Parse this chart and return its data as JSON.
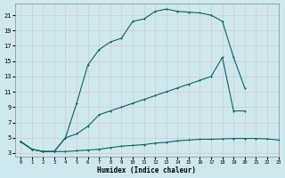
{
  "xlabel": "Humidex (Indice chaleur)",
  "bg_color": "#cee8ee",
  "grid_color": "#b8d8e0",
  "line_color": "#006666",
  "xlim": [
    -0.5,
    23
  ],
  "ylim": [
    2.5,
    22.5
  ],
  "xticks": [
    0,
    1,
    2,
    3,
    4,
    5,
    6,
    7,
    8,
    9,
    10,
    11,
    12,
    13,
    14,
    15,
    16,
    17,
    18,
    19,
    20,
    21,
    22,
    23
  ],
  "yticks": [
    3,
    5,
    7,
    9,
    11,
    13,
    15,
    17,
    19,
    21
  ],
  "line1_x": [
    0,
    1,
    2,
    3,
    4,
    5,
    6,
    7,
    8,
    9,
    10,
    11,
    12,
    13,
    14,
    15,
    16,
    17,
    18,
    19,
    20,
    21,
    22,
    23
  ],
  "line1_y": [
    4.5,
    3.5,
    3.2,
    3.2,
    3.2,
    3.3,
    3.4,
    3.5,
    3.7,
    3.9,
    4.0,
    4.1,
    4.3,
    4.4,
    4.6,
    4.7,
    4.8,
    4.8,
    4.85,
    4.9,
    4.9,
    4.9,
    4.85,
    4.7
  ],
  "line2_x": [
    0,
    1,
    2,
    3,
    4,
    5,
    6,
    7,
    8,
    9,
    10,
    11,
    12,
    13,
    14,
    15,
    16,
    17,
    18,
    19,
    20,
    21,
    22,
    23
  ],
  "line2_y": [
    4.5,
    3.5,
    3.2,
    3.2,
    5.0,
    5.5,
    6.5,
    8.0,
    8.5,
    9.0,
    9.5,
    10.0,
    10.5,
    11.0,
    11.5,
    12.0,
    12.5,
    13.0,
    15.5,
    8.5,
    8.5,
    null,
    null,
    null
  ],
  "line3_x": [
    0,
    1,
    2,
    3,
    4,
    5,
    6,
    7,
    8,
    9,
    10,
    11,
    12,
    13,
    14,
    15,
    16,
    17,
    18,
    19,
    20,
    21,
    22,
    23
  ],
  "line3_y": [
    4.5,
    3.5,
    3.2,
    3.2,
    5.0,
    9.5,
    14.5,
    16.5,
    17.5,
    18.0,
    20.2,
    20.5,
    21.5,
    21.8,
    21.5,
    21.4,
    21.3,
    21.0,
    20.2,
    15.5,
    11.5,
    null,
    null,
    null
  ]
}
